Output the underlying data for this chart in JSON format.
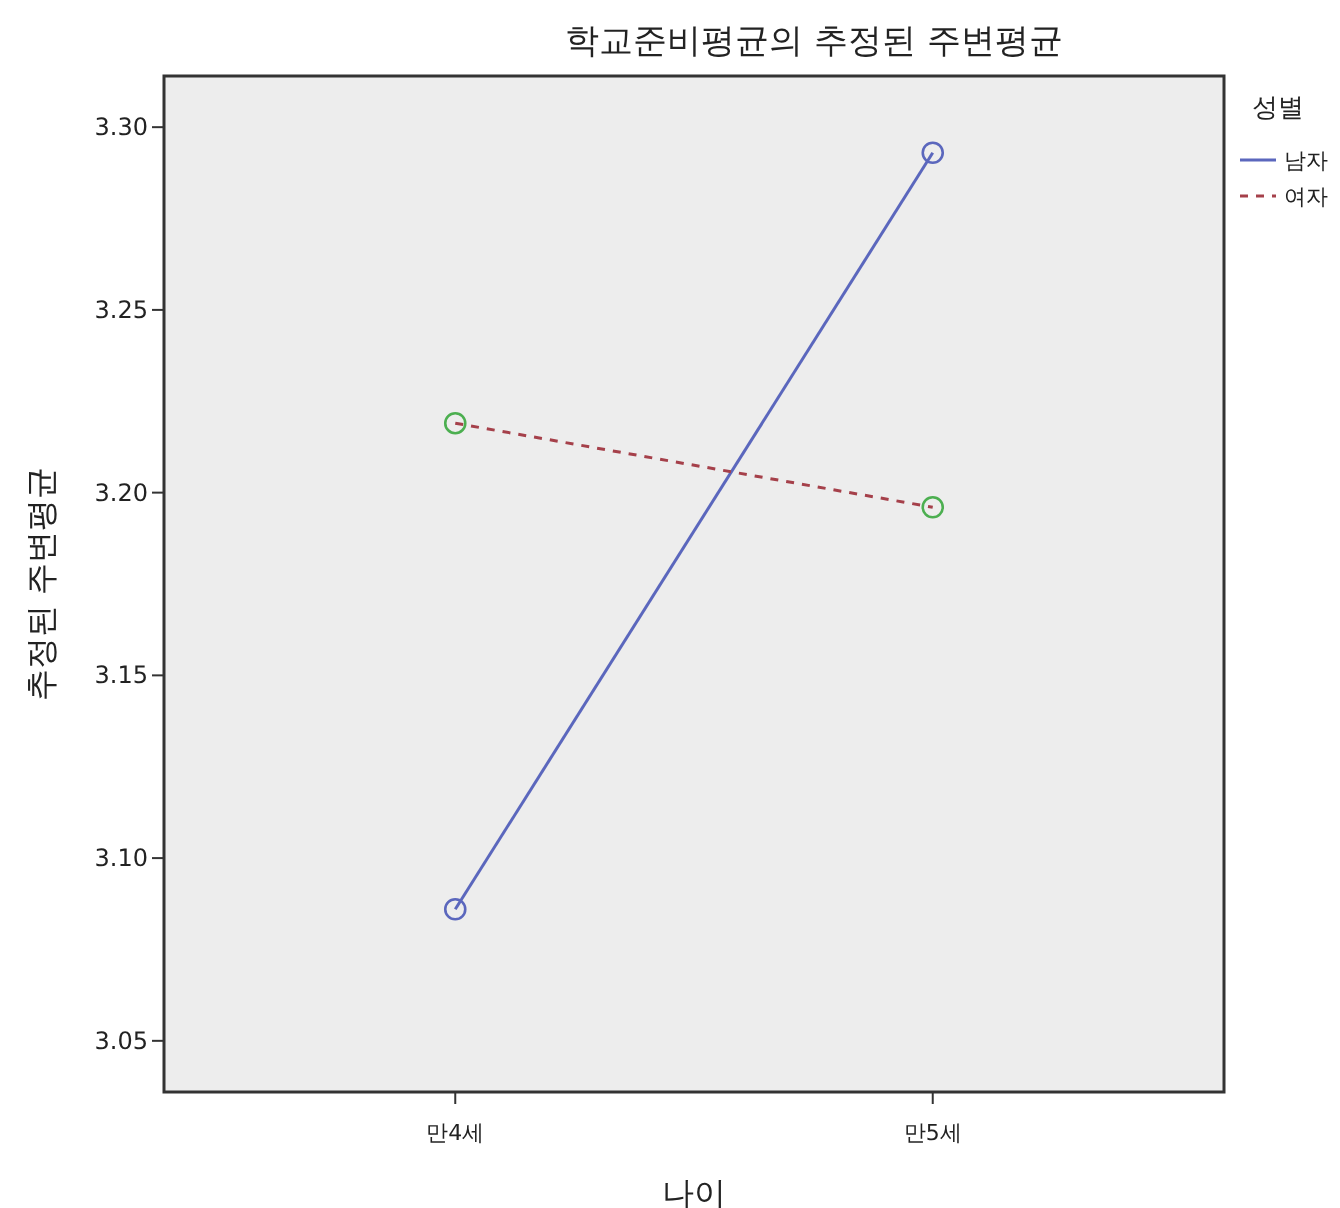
{
  "chart_data": {
    "type": "line",
    "title": "학교준비평균의 추정된 주변평균",
    "xlabel": "나이",
    "ylabel": "추정된 주변평균",
    "legend_title": "성별",
    "categories": [
      "만4세",
      "만5세"
    ],
    "series": [
      {
        "name": "남자",
        "color": "#5b67bd",
        "colors": [
          "#5b67bd",
          "#5b67bd"
        ],
        "line_style": "solid",
        "values": [
          3.086,
          3.293
        ]
      },
      {
        "name": "여자",
        "color": "#a5404a",
        "colors": [
          "#4caf50",
          "#4caf50"
        ],
        "line_style": "dashed",
        "values": [
          3.219,
          3.196
        ]
      }
    ],
    "ylim": [
      3.036,
      3.314
    ],
    "yticks": [
      {
        "value": 3.05,
        "label": "3.05"
      },
      {
        "value": 3.1,
        "label": "3.10"
      },
      {
        "value": 3.15,
        "label": "3.15"
      },
      {
        "value": 3.2,
        "label": "3.20"
      },
      {
        "value": 3.25,
        "label": "3.25"
      },
      {
        "value": 3.3,
        "label": "3.30"
      }
    ],
    "marker": "circle",
    "grid": false,
    "legend": "top right"
  }
}
